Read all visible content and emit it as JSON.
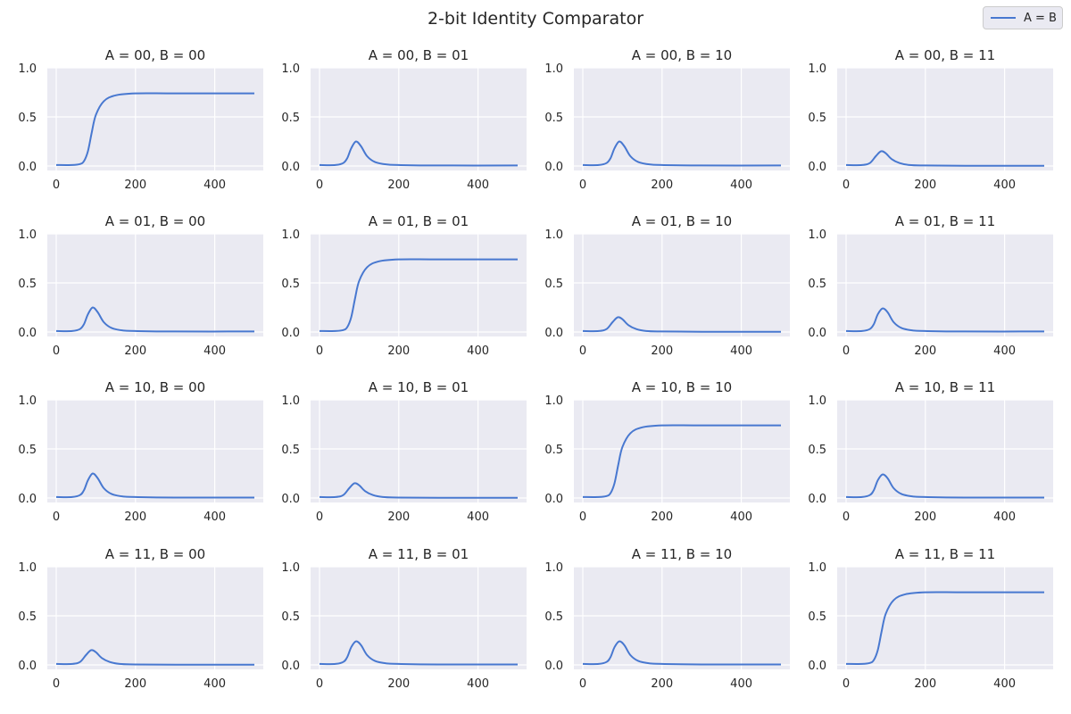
{
  "title": "2-bit Identity Comparator",
  "legend": {
    "label": "A = B",
    "color": "#4878d0"
  },
  "colors": {
    "background": "#eaeaf2",
    "grid": "#ffffff",
    "line": "#4878d0",
    "text": "#262626"
  },
  "chart_data": [
    {
      "type": "line",
      "title": "A = 00, B = 00",
      "xlim": [
        0,
        500
      ],
      "ylim": [
        0,
        1
      ],
      "xticks": [
        0,
        200,
        400
      ],
      "yticks": [
        "0.0",
        "0.5",
        "1.0"
      ],
      "grid": true,
      "series": [
        {
          "name": "A = B",
          "x": [
            0,
            40,
            60,
            70,
            80,
            90,
            100,
            120,
            150,
            200,
            300,
            500
          ],
          "y": [
            0.01,
            0.01,
            0.02,
            0.05,
            0.15,
            0.35,
            0.52,
            0.66,
            0.72,
            0.74,
            0.74,
            0.74
          ]
        }
      ]
    },
    {
      "type": "line",
      "title": "A = 00, B = 01",
      "xlim": [
        0,
        500
      ],
      "ylim": [
        0,
        1
      ],
      "xticks": [
        0,
        200,
        400
      ],
      "yticks": [
        "0.0",
        "0.5",
        "1.0"
      ],
      "grid": true,
      "series": [
        {
          "name": "A = B",
          "x": [
            0,
            40,
            60,
            70,
            80,
            92,
            105,
            120,
            140,
            170,
            200,
            300,
            500
          ],
          "y": [
            0.01,
            0.01,
            0.03,
            0.08,
            0.18,
            0.25,
            0.2,
            0.1,
            0.04,
            0.015,
            0.01,
            0.005,
            0.005
          ]
        }
      ]
    },
    {
      "type": "line",
      "title": "A = 00, B = 10",
      "xlim": [
        0,
        500
      ],
      "ylim": [
        0,
        1
      ],
      "xticks": [
        0,
        200,
        400
      ],
      "yticks": [
        "0.0",
        "0.5",
        "1.0"
      ],
      "grid": true,
      "series": [
        {
          "name": "A = B",
          "x": [
            0,
            40,
            60,
            70,
            80,
            92,
            105,
            120,
            140,
            170,
            200,
            300,
            500
          ],
          "y": [
            0.01,
            0.01,
            0.03,
            0.08,
            0.18,
            0.25,
            0.2,
            0.1,
            0.04,
            0.015,
            0.01,
            0.005,
            0.005
          ]
        }
      ]
    },
    {
      "type": "line",
      "title": "A = 00, B = 11",
      "xlim": [
        0,
        500
      ],
      "ylim": [
        0,
        1
      ],
      "xticks": [
        0,
        200,
        400
      ],
      "yticks": [
        "0.0",
        "0.5",
        "1.0"
      ],
      "grid": true,
      "series": [
        {
          "name": "A = B",
          "x": [
            0,
            40,
            60,
            75,
            88,
            100,
            115,
            135,
            160,
            200,
            300,
            500
          ],
          "y": [
            0.01,
            0.01,
            0.03,
            0.1,
            0.15,
            0.13,
            0.07,
            0.03,
            0.01,
            0.005,
            0.003,
            0.003
          ]
        }
      ]
    },
    {
      "type": "line",
      "title": "A = 01, B = 00",
      "xlim": [
        0,
        500
      ],
      "ylim": [
        0,
        1
      ],
      "xticks": [
        0,
        200,
        400
      ],
      "yticks": [
        "0.0",
        "0.5",
        "1.0"
      ],
      "grid": true,
      "series": [
        {
          "name": "A = B",
          "x": [
            0,
            40,
            60,
            70,
            80,
            92,
            105,
            120,
            140,
            170,
            200,
            300,
            500
          ],
          "y": [
            0.01,
            0.01,
            0.03,
            0.08,
            0.18,
            0.25,
            0.2,
            0.1,
            0.04,
            0.015,
            0.01,
            0.005,
            0.005
          ]
        }
      ]
    },
    {
      "type": "line",
      "title": "A = 01, B = 01",
      "xlim": [
        0,
        500
      ],
      "ylim": [
        0,
        1
      ],
      "xticks": [
        0,
        200,
        400
      ],
      "yticks": [
        "0.0",
        "0.5",
        "1.0"
      ],
      "grid": true,
      "series": [
        {
          "name": "A = B",
          "x": [
            0,
            40,
            60,
            70,
            80,
            90,
            100,
            120,
            150,
            200,
            300,
            500
          ],
          "y": [
            0.01,
            0.01,
            0.02,
            0.05,
            0.15,
            0.35,
            0.52,
            0.66,
            0.72,
            0.74,
            0.74,
            0.74
          ]
        }
      ]
    },
    {
      "type": "line",
      "title": "A = 01, B = 10",
      "xlim": [
        0,
        500
      ],
      "ylim": [
        0,
        1
      ],
      "xticks": [
        0,
        200,
        400
      ],
      "yticks": [
        "0.0",
        "0.5",
        "1.0"
      ],
      "grid": true,
      "series": [
        {
          "name": "A = B",
          "x": [
            0,
            40,
            60,
            75,
            88,
            100,
            115,
            135,
            160,
            200,
            300,
            500
          ],
          "y": [
            0.01,
            0.01,
            0.03,
            0.1,
            0.15,
            0.13,
            0.07,
            0.03,
            0.01,
            0.005,
            0.003,
            0.003
          ]
        }
      ]
    },
    {
      "type": "line",
      "title": "A = 01, B = 11",
      "xlim": [
        0,
        500
      ],
      "ylim": [
        0,
        1
      ],
      "xticks": [
        0,
        200,
        400
      ],
      "yticks": [
        "0.0",
        "0.5",
        "1.0"
      ],
      "grid": true,
      "series": [
        {
          "name": "A = B",
          "x": [
            0,
            40,
            60,
            70,
            80,
            92,
            105,
            120,
            140,
            170,
            200,
            300,
            500
          ],
          "y": [
            0.01,
            0.01,
            0.03,
            0.08,
            0.18,
            0.24,
            0.2,
            0.1,
            0.04,
            0.015,
            0.01,
            0.005,
            0.005
          ]
        }
      ]
    },
    {
      "type": "line",
      "title": "A = 10, B = 00",
      "xlim": [
        0,
        500
      ],
      "ylim": [
        0,
        1
      ],
      "xticks": [
        0,
        200,
        400
      ],
      "yticks": [
        "0.0",
        "0.5",
        "1.0"
      ],
      "grid": true,
      "series": [
        {
          "name": "A = B",
          "x": [
            0,
            40,
            60,
            70,
            80,
            92,
            105,
            120,
            140,
            170,
            200,
            300,
            500
          ],
          "y": [
            0.01,
            0.01,
            0.03,
            0.08,
            0.18,
            0.25,
            0.2,
            0.1,
            0.04,
            0.015,
            0.01,
            0.005,
            0.005
          ]
        }
      ]
    },
    {
      "type": "line",
      "title": "A = 10, B = 01",
      "xlim": [
        0,
        500
      ],
      "ylim": [
        0,
        1
      ],
      "xticks": [
        0,
        200,
        400
      ],
      "yticks": [
        "0.0",
        "0.5",
        "1.0"
      ],
      "grid": true,
      "series": [
        {
          "name": "A = B",
          "x": [
            0,
            40,
            60,
            75,
            88,
            100,
            115,
            135,
            160,
            200,
            300,
            500
          ],
          "y": [
            0.01,
            0.01,
            0.03,
            0.1,
            0.15,
            0.13,
            0.07,
            0.03,
            0.01,
            0.005,
            0.003,
            0.003
          ]
        }
      ]
    },
    {
      "type": "line",
      "title": "A = 10, B = 10",
      "xlim": [
        0,
        500
      ],
      "ylim": [
        0,
        1
      ],
      "xticks": [
        0,
        200,
        400
      ],
      "yticks": [
        "0.0",
        "0.5",
        "1.0"
      ],
      "grid": true,
      "series": [
        {
          "name": "A = B",
          "x": [
            0,
            40,
            60,
            70,
            80,
            90,
            100,
            120,
            150,
            200,
            300,
            500
          ],
          "y": [
            0.01,
            0.01,
            0.02,
            0.05,
            0.15,
            0.35,
            0.52,
            0.66,
            0.72,
            0.74,
            0.74,
            0.74
          ]
        }
      ]
    },
    {
      "type": "line",
      "title": "A = 10, B = 11",
      "xlim": [
        0,
        500
      ],
      "ylim": [
        0,
        1
      ],
      "xticks": [
        0,
        200,
        400
      ],
      "yticks": [
        "0.0",
        "0.5",
        "1.0"
      ],
      "grid": true,
      "series": [
        {
          "name": "A = B",
          "x": [
            0,
            40,
            60,
            70,
            80,
            92,
            105,
            120,
            140,
            170,
            200,
            300,
            500
          ],
          "y": [
            0.01,
            0.01,
            0.03,
            0.08,
            0.18,
            0.24,
            0.2,
            0.1,
            0.04,
            0.015,
            0.01,
            0.005,
            0.005
          ]
        }
      ]
    },
    {
      "type": "line",
      "title": "A = 11, B = 00",
      "xlim": [
        0,
        500
      ],
      "ylim": [
        0,
        1
      ],
      "xticks": [
        0,
        200,
        400
      ],
      "yticks": [
        "0.0",
        "0.5",
        "1.0"
      ],
      "grid": true,
      "series": [
        {
          "name": "A = B",
          "x": [
            0,
            40,
            60,
            75,
            88,
            100,
            115,
            135,
            160,
            200,
            300,
            500
          ],
          "y": [
            0.01,
            0.01,
            0.03,
            0.1,
            0.15,
            0.13,
            0.07,
            0.03,
            0.01,
            0.005,
            0.003,
            0.003
          ]
        }
      ]
    },
    {
      "type": "line",
      "title": "A = 11, B = 01",
      "xlim": [
        0,
        500
      ],
      "ylim": [
        0,
        1
      ],
      "xticks": [
        0,
        200,
        400
      ],
      "yticks": [
        "0.0",
        "0.5",
        "1.0"
      ],
      "grid": true,
      "series": [
        {
          "name": "A = B",
          "x": [
            0,
            40,
            60,
            70,
            80,
            92,
            105,
            120,
            140,
            170,
            200,
            300,
            500
          ],
          "y": [
            0.01,
            0.01,
            0.03,
            0.08,
            0.18,
            0.24,
            0.2,
            0.1,
            0.04,
            0.015,
            0.01,
            0.005,
            0.005
          ]
        }
      ]
    },
    {
      "type": "line",
      "title": "A = 11, B = 10",
      "xlim": [
        0,
        500
      ],
      "ylim": [
        0,
        1
      ],
      "xticks": [
        0,
        200,
        400
      ],
      "yticks": [
        "0.0",
        "0.5",
        "1.0"
      ],
      "grid": true,
      "series": [
        {
          "name": "A = B",
          "x": [
            0,
            40,
            60,
            70,
            80,
            92,
            105,
            120,
            140,
            170,
            200,
            300,
            500
          ],
          "y": [
            0.01,
            0.01,
            0.03,
            0.08,
            0.18,
            0.24,
            0.2,
            0.1,
            0.04,
            0.015,
            0.01,
            0.005,
            0.005
          ]
        }
      ]
    },
    {
      "type": "line",
      "title": "A = 11, B = 11",
      "xlim": [
        0,
        500
      ],
      "ylim": [
        0,
        1
      ],
      "xticks": [
        0,
        200,
        400
      ],
      "yticks": [
        "0.0",
        "0.5",
        "1.0"
      ],
      "grid": true,
      "series": [
        {
          "name": "A = B",
          "x": [
            0,
            40,
            60,
            70,
            80,
            90,
            100,
            120,
            150,
            200,
            300,
            500
          ],
          "y": [
            0.01,
            0.01,
            0.02,
            0.05,
            0.15,
            0.35,
            0.52,
            0.66,
            0.72,
            0.74,
            0.74,
            0.74
          ]
        }
      ]
    }
  ]
}
